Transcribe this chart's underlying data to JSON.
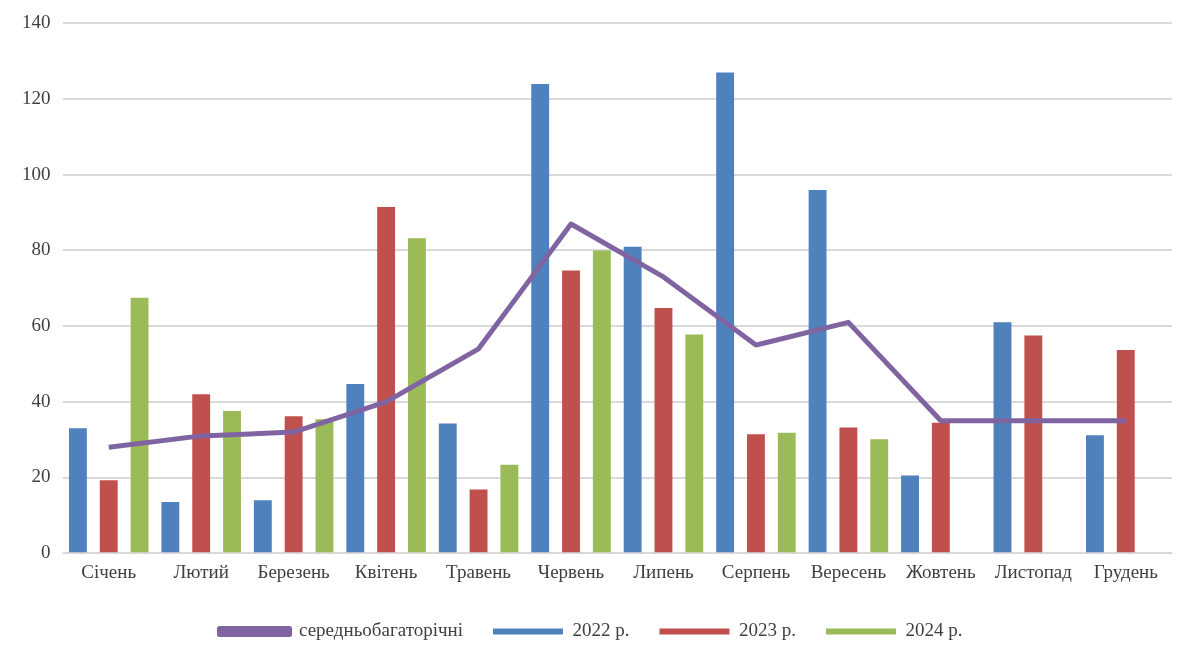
{
  "chart_data": {
    "type": "bar",
    "categories": [
      "Січень",
      "Лютий",
      "Березень",
      "Квітень",
      "Травень",
      "Червень",
      "Липень",
      "Серпень",
      "Вересень",
      "Жовтень",
      "Листопад",
      "Грудень"
    ],
    "series": [
      {
        "name": "2022 р.",
        "color": "#4f81bd",
        "values": [
          33,
          13.5,
          14,
          44.7,
          34.3,
          124,
          81,
          127,
          96,
          20.5,
          61,
          31.2
        ]
      },
      {
        "name": "2023 р.",
        "color": "#c0504d",
        "values": [
          19.3,
          42,
          36.2,
          91.5,
          16.8,
          74.7,
          64.8,
          31.4,
          33.2,
          34.5,
          57.5,
          53.7
        ]
      },
      {
        "name": "2024 р.",
        "color": "#9bbb59",
        "values": [
          67.5,
          37.6,
          35.4,
          83.2,
          23.4,
          80,
          57.8,
          31.8,
          30.1,
          null,
          null,
          null
        ]
      },
      {
        "name": "середньобагаторічні",
        "type": "line",
        "color": "#8064a2",
        "values": [
          28,
          31,
          32,
          40,
          54,
          87,
          73,
          55,
          61,
          35,
          35,
          35
        ]
      }
    ],
    "ylim": [
      0,
      140
    ],
    "yticks": [
      0,
      20,
      40,
      60,
      80,
      100,
      120,
      140
    ],
    "grid": "y",
    "legend": "bottom",
    "marker": "none"
  }
}
